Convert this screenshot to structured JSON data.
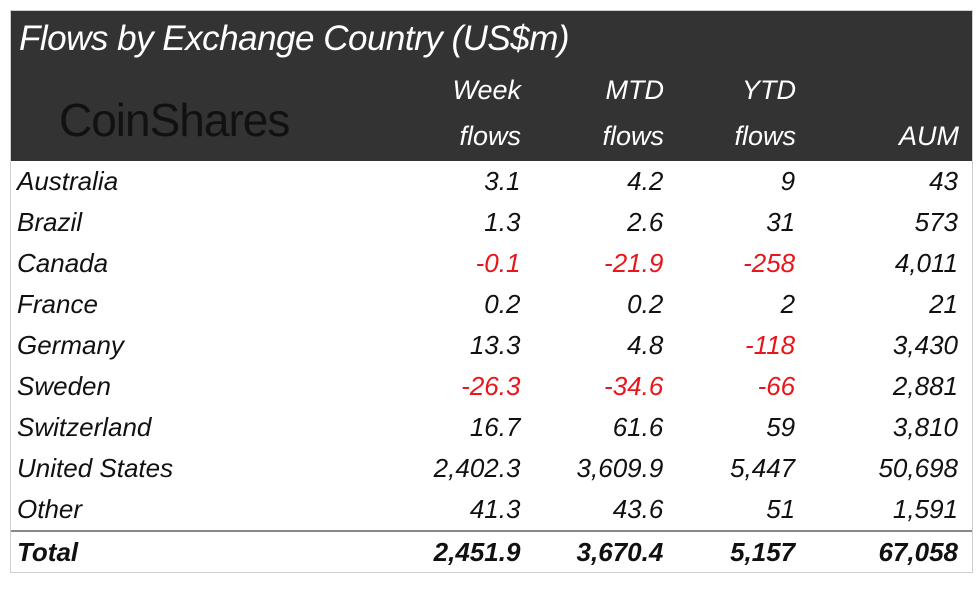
{
  "title": "Flows by Exchange Country (US$m)",
  "logo_text": "CoinShares",
  "colors": {
    "header_bg": "#333333",
    "negative": "#e8161b",
    "text": "#111111"
  },
  "chart_data": {
    "type": "table",
    "title": "Flows by Exchange Country (US$m)",
    "columns": [
      {
        "line1": "",
        "line2": ""
      },
      {
        "line1": "Week",
        "line2": "flows"
      },
      {
        "line1": "MTD",
        "line2": "flows"
      },
      {
        "line1": "YTD",
        "line2": "flows"
      },
      {
        "line1": "",
        "line2": "AUM"
      }
    ],
    "rows": [
      [
        "Australia",
        "3.1",
        "4.2",
        "9",
        "43"
      ],
      [
        "Brazil",
        "1.3",
        "2.6",
        "31",
        "573"
      ],
      [
        "Canada",
        "-0.1",
        "-21.9",
        "-258",
        "4,011"
      ],
      [
        "France",
        "0.2",
        "0.2",
        "2",
        "21"
      ],
      [
        "Germany",
        "13.3",
        "4.8",
        "-118",
        "3,430"
      ],
      [
        "Sweden",
        "-26.3",
        "-34.6",
        "-66",
        "2,881"
      ],
      [
        "Switzerland",
        "16.7",
        "61.6",
        "59",
        "3,810"
      ],
      [
        "United States",
        "2,402.3",
        "3,609.9",
        "5,447",
        "50,698"
      ],
      [
        "Other",
        "41.3",
        "43.6",
        "51",
        "1,591"
      ]
    ],
    "total": [
      "Total",
      "2,451.9",
      "3,670.4",
      "5,157",
      "67,058"
    ]
  }
}
